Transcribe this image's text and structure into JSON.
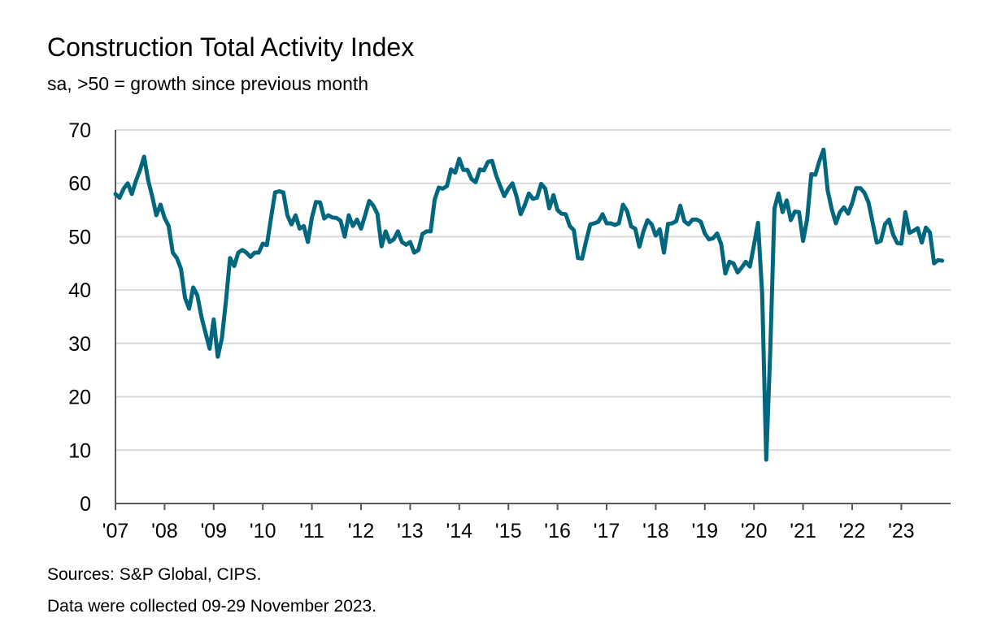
{
  "header": {
    "title": "Construction Total Activity Index",
    "subtitle": "sa, >50 = growth since previous month"
  },
  "footer": {
    "sources": "Sources: S&P Global, CIPS.",
    "note": "Data were collected 09-29 November 2023."
  },
  "colors": {
    "line": "#00677f",
    "grid": "#d9d9d9",
    "axis": "#595959"
  },
  "chart_data": {
    "type": "line",
    "title": "Construction Total Activity Index",
    "subtitle": "sa, >50 = growth since previous month",
    "xlabel": "",
    "ylabel": "",
    "ylim": [
      0,
      70
    ],
    "yticks": [
      0,
      10,
      20,
      30,
      40,
      50,
      60,
      70
    ],
    "x_start": "2007-01",
    "x_end": "2023-11",
    "xtick_labels": [
      "'07",
      "'08",
      "'09",
      "'10",
      "'11",
      "'12",
      "'13",
      "'14",
      "'15",
      "'16",
      "'17",
      "'18",
      "'19",
      "'20",
      "'21",
      "'22",
      "'23"
    ],
    "grid": true,
    "legend": "none",
    "series": [
      {
        "name": "",
        "values": [
          58.0,
          57.3,
          59.0,
          60.0,
          58.0,
          60.5,
          62.5,
          65.0,
          60.5,
          57.5,
          54.0,
          56.0,
          53.5,
          52.0,
          47.0,
          46.0,
          44.0,
          38.5,
          36.5,
          40.5,
          39.0,
          35.0,
          32.0,
          29.0,
          34.5,
          27.5,
          31.0,
          38.0,
          46.0,
          44.5,
          47.0,
          47.5,
          47.0,
          46.2,
          47.0,
          47.0,
          48.7,
          48.4,
          53.5,
          58.3,
          58.5,
          58.3,
          54.0,
          52.3,
          54.0,
          51.5,
          52.0,
          49.0,
          53.6,
          56.5,
          56.4,
          53.4,
          54.0,
          53.6,
          53.5,
          53.0,
          50.0,
          54.0,
          52.0,
          53.2,
          51.5,
          54.0,
          56.7,
          55.8,
          54.3,
          48.2,
          51.0,
          49.0,
          49.5,
          51.0,
          49.0,
          48.5,
          49.0,
          47.0,
          47.5,
          50.5,
          51.0,
          51.0,
          57.0,
          59.2,
          59.0,
          59.5,
          62.6,
          62.0,
          64.6,
          62.5,
          62.5,
          60.8,
          60.2,
          62.6,
          62.4,
          64.0,
          64.2,
          61.5,
          59.5,
          57.6,
          59.0,
          60.0,
          57.5,
          54.2,
          55.9,
          58.1,
          57.1,
          57.3,
          59.9,
          59.0,
          55.3,
          57.8,
          55.0,
          54.3,
          54.2,
          52.0,
          51.2,
          46.0,
          45.9,
          49.2,
          52.3,
          52.5,
          52.8,
          54.2,
          52.5,
          52.5,
          52.2,
          52.5,
          56.0,
          54.8,
          51.9,
          51.5,
          48.1,
          51.0,
          53.1,
          52.3,
          50.2,
          51.4,
          47.0,
          52.4,
          52.5,
          52.9,
          55.8,
          52.9,
          52.3,
          53.2,
          53.2,
          52.8,
          50.6,
          49.5,
          49.7,
          50.6,
          48.6,
          43.1,
          45.3,
          45.0,
          43.3,
          44.2,
          45.3,
          44.4,
          48.4,
          52.6,
          39.3,
          8.2,
          28.9,
          55.3,
          58.1,
          54.6,
          56.8,
          53.1,
          54.7,
          54.6,
          49.2,
          53.3,
          61.7,
          61.6,
          64.2,
          66.3,
          58.7,
          55.2,
          52.5,
          54.6,
          55.5,
          54.3,
          56.3,
          59.1,
          59.1,
          58.2,
          56.4,
          52.6,
          48.9,
          49.2,
          52.3,
          53.2,
          50.4,
          48.8,
          48.7,
          54.6,
          50.7,
          51.1,
          51.6,
          48.9,
          51.7,
          50.8,
          45.0,
          45.6,
          45.5
        ]
      }
    ]
  }
}
